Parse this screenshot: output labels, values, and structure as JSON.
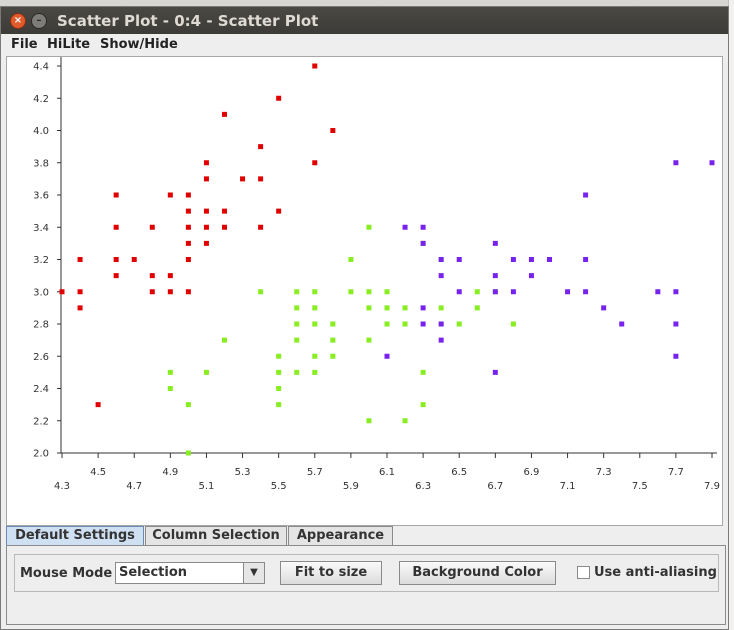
{
  "window": {
    "title": "Scatter Plot - 0:4 - Scatter Plot",
    "close_glyph": "×",
    "min_glyph": "–"
  },
  "menu": [
    "File",
    "HiLite",
    "Show/Hide"
  ],
  "tabs": [
    "Default Settings",
    "Column Selection",
    "Appearance"
  ],
  "controls": {
    "mouse_mode_label": "Mouse Mode",
    "mouse_mode_value": "Selection",
    "fit_button": "Fit to size",
    "bg_button": "Background Color",
    "antialias_label": "Use anti-aliasing",
    "antialias_checked": false
  },
  "chart_data": {
    "type": "scatter",
    "xlim": [
      4.3,
      7.9
    ],
    "ylim": [
      2.0,
      4.4
    ],
    "x_ticks": [
      "4.3",
      "4.5",
      "4.7",
      "4.9",
      "5.1",
      "5.3",
      "5.5",
      "5.7",
      "5.9",
      "6.1",
      "6.3",
      "6.5",
      "6.7",
      "6.9",
      "7.1",
      "7.3",
      "7.5",
      "7.7",
      "7.9"
    ],
    "y_ticks": [
      "2.0",
      "2.2",
      "2.4",
      "2.6",
      "2.8",
      "3.0",
      "3.2",
      "3.4",
      "3.6",
      "3.8",
      "4.0",
      "4.2",
      "4.4"
    ],
    "series": [
      {
        "color": "#e00000",
        "points": [
          [
            4.3,
            3.0
          ],
          [
            4.4,
            2.9
          ],
          [
            4.4,
            3.0
          ],
          [
            4.4,
            3.2
          ],
          [
            4.5,
            2.3
          ],
          [
            4.6,
            3.1
          ],
          [
            4.6,
            3.2
          ],
          [
            4.6,
            3.4
          ],
          [
            4.6,
            3.6
          ],
          [
            4.7,
            3.2
          ],
          [
            4.8,
            3.0
          ],
          [
            4.8,
            3.1
          ],
          [
            4.8,
            3.4
          ],
          [
            4.9,
            3.0
          ],
          [
            4.9,
            3.1
          ],
          [
            4.9,
            3.6
          ],
          [
            5.0,
            3.0
          ],
          [
            5.0,
            3.2
          ],
          [
            5.0,
            3.3
          ],
          [
            5.0,
            3.4
          ],
          [
            5.0,
            3.5
          ],
          [
            5.0,
            3.6
          ],
          [
            5.1,
            3.3
          ],
          [
            5.1,
            3.4
          ],
          [
            5.1,
            3.5
          ],
          [
            5.1,
            3.7
          ],
          [
            5.1,
            3.8
          ],
          [
            5.2,
            3.4
          ],
          [
            5.2,
            3.5
          ],
          [
            5.2,
            4.1
          ],
          [
            5.3,
            3.7
          ],
          [
            5.4,
            3.4
          ],
          [
            5.4,
            3.7
          ],
          [
            5.4,
            3.9
          ],
          [
            5.5,
            3.5
          ],
          [
            5.5,
            4.2
          ],
          [
            5.7,
            3.8
          ],
          [
            5.7,
            4.4
          ],
          [
            5.8,
            4.0
          ]
        ]
      },
      {
        "color": "#88ee22",
        "points": [
          [
            4.9,
            2.4
          ],
          [
            4.9,
            2.5
          ],
          [
            5.0,
            2.0
          ],
          [
            5.0,
            2.3
          ],
          [
            5.1,
            2.5
          ],
          [
            5.2,
            2.7
          ],
          [
            5.4,
            3.0
          ],
          [
            5.5,
            2.3
          ],
          [
            5.5,
            2.4
          ],
          [
            5.5,
            2.5
          ],
          [
            5.5,
            2.6
          ],
          [
            5.6,
            2.5
          ],
          [
            5.6,
            2.7
          ],
          [
            5.6,
            2.8
          ],
          [
            5.6,
            2.9
          ],
          [
            5.6,
            3.0
          ],
          [
            5.7,
            2.5
          ],
          [
            5.7,
            2.6
          ],
          [
            5.7,
            2.8
          ],
          [
            5.7,
            2.9
          ],
          [
            5.7,
            3.0
          ],
          [
            5.8,
            2.6
          ],
          [
            5.8,
            2.7
          ],
          [
            5.8,
            2.8
          ],
          [
            5.9,
            3.0
          ],
          [
            5.9,
            3.2
          ],
          [
            6.0,
            2.2
          ],
          [
            6.0,
            2.7
          ],
          [
            6.0,
            2.9
          ],
          [
            6.0,
            3.4
          ],
          [
            6.1,
            2.8
          ],
          [
            6.1,
            2.9
          ],
          [
            6.1,
            3.0
          ],
          [
            6.2,
            2.2
          ],
          [
            6.2,
            2.9
          ],
          [
            6.3,
            2.3
          ],
          [
            6.3,
            2.5
          ],
          [
            6.3,
            3.3
          ],
          [
            6.4,
            2.9
          ],
          [
            6.4,
            3.2
          ],
          [
            6.5,
            2.8
          ],
          [
            6.6,
            2.9
          ],
          [
            6.6,
            3.0
          ],
          [
            6.7,
            3.0
          ],
          [
            6.8,
            2.8
          ],
          [
            6.0,
            3.0
          ],
          [
            6.2,
            2.8
          ],
          [
            6.4,
            2.8
          ]
        ]
      },
      {
        "color": "#7722ee",
        "points": [
          [
            6.1,
            2.6
          ],
          [
            6.2,
            3.4
          ],
          [
            6.3,
            2.8
          ],
          [
            6.3,
            2.9
          ],
          [
            6.3,
            3.3
          ],
          [
            6.3,
            3.4
          ],
          [
            6.4,
            2.7
          ],
          [
            6.4,
            2.8
          ],
          [
            6.4,
            3.1
          ],
          [
            6.4,
            3.2
          ],
          [
            6.5,
            3.0
          ],
          [
            6.5,
            3.2
          ],
          [
            6.7,
            2.5
          ],
          [
            6.7,
            3.0
          ],
          [
            6.7,
            3.1
          ],
          [
            6.7,
            3.3
          ],
          [
            6.8,
            3.0
          ],
          [
            6.8,
            3.2
          ],
          [
            6.9,
            3.1
          ],
          [
            6.9,
            3.2
          ],
          [
            7.0,
            3.2
          ],
          [
            7.1,
            3.0
          ],
          [
            7.2,
            3.0
          ],
          [
            7.2,
            3.2
          ],
          [
            7.2,
            3.6
          ],
          [
            7.3,
            2.9
          ],
          [
            7.4,
            2.8
          ],
          [
            7.6,
            3.0
          ],
          [
            7.7,
            2.6
          ],
          [
            7.7,
            2.8
          ],
          [
            7.7,
            3.0
          ],
          [
            7.7,
            3.8
          ],
          [
            7.9,
            3.8
          ]
        ]
      }
    ]
  }
}
